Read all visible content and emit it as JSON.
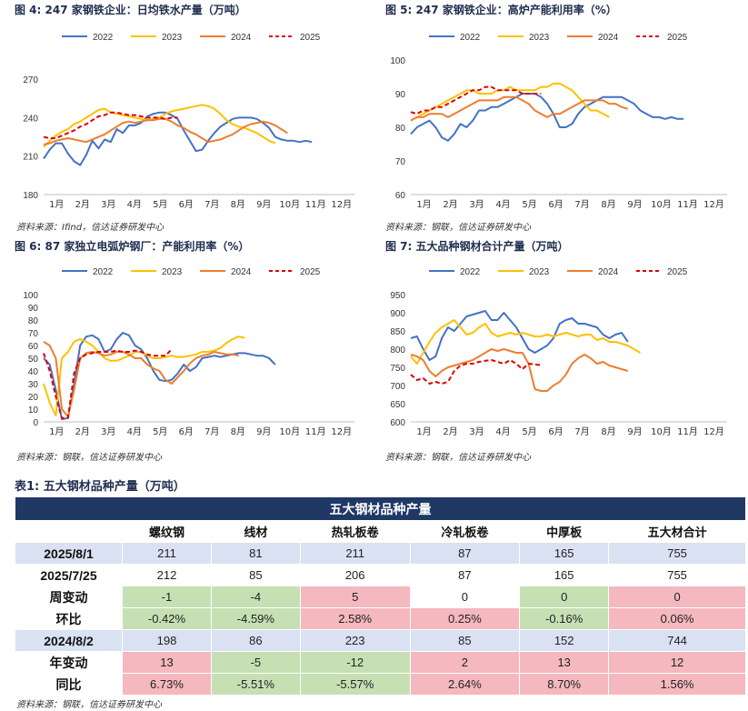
{
  "charts_meta": {
    "c4": {
      "fig": "图 4:",
      "title": "247 家钢铁企业：日均铁水产量（万吨）",
      "source": "资料来源：Ifind，信达证券研发中心"
    },
    "c5": {
      "fig": "图 5:",
      "title": "247 家钢铁企业：高炉产能利用率（%）",
      "source": "资料来源：钢联，信达证券研发中心"
    },
    "c6": {
      "fig": "图 6:",
      "title": "87 家独立电弧炉钢厂：产能利用率（%）",
      "source": "资料来源：钢联，信达证券研发中心"
    },
    "c7": {
      "fig": "图 7:",
      "title": "五大品种钢材合计产量（万吨）",
      "source": "资料来源：钢联，信达证券研发中心"
    }
  },
  "colors": {
    "2022": "#4472c4",
    "2023": "#ffc000",
    "2024": "#ed7d31",
    "2025": "#e00000"
  },
  "chart_data": [
    {
      "id": "c4",
      "type": "line",
      "x_ticks": [
        "1月",
        "2月",
        "3月",
        "4月",
        "5月",
        "6月",
        "7月",
        "8月",
        "9月",
        "10月",
        "11月",
        "12月"
      ],
      "ylim": [
        180,
        285
      ],
      "yticks": [
        180,
        210,
        240,
        270
      ],
      "series": [
        {
          "name": "2022",
          "style": "solid",
          "values": [
            208,
            215,
            220,
            220,
            212,
            206,
            203,
            211,
            222,
            216,
            223,
            221,
            231,
            228,
            234,
            234,
            236,
            241,
            243,
            244,
            244,
            242,
            239,
            230,
            222,
            214,
            215,
            222,
            228,
            233,
            236,
            239,
            240,
            240,
            240,
            239,
            236,
            232,
            225,
            223,
            222,
            222,
            221,
            222,
            221
          ]
        },
        {
          "name": "2023",
          "style": "solid",
          "values": [
            217,
            222,
            226,
            229,
            231,
            235,
            237,
            240,
            243,
            246,
            247,
            244,
            243,
            242,
            241,
            240,
            239,
            238,
            239,
            240,
            243,
            245,
            246,
            247,
            248,
            249,
            250,
            249,
            247,
            243,
            238,
            235,
            233,
            232,
            230,
            228,
            225,
            222,
            220
          ]
        },
        {
          "name": "2024",
          "style": "solid",
          "values": [
            219,
            220,
            222,
            223,
            224,
            223,
            222,
            221,
            223,
            225,
            227,
            230,
            233,
            236,
            237,
            236,
            237,
            238,
            238,
            239,
            239,
            237,
            234,
            232,
            229,
            227,
            224,
            221,
            222,
            223,
            225,
            227,
            230,
            233,
            235,
            236,
            237,
            236,
            234,
            231,
            228
          ]
        },
        {
          "name": "2025",
          "style": "dashed",
          "values": [
            225,
            224,
            224,
            226,
            228,
            230,
            233,
            235,
            238,
            241,
            242,
            244,
            244,
            243,
            242,
            242,
            241,
            240,
            240,
            240,
            239,
            240,
            240
          ]
        }
      ]
    },
    {
      "id": "c5",
      "type": "line",
      "x_ticks": [
        "1月",
        "2月",
        "3月",
        "4月",
        "5月",
        "6月",
        "7月",
        "8月",
        "9月",
        "10月",
        "11月",
        "12月"
      ],
      "ylim": [
        60,
        100
      ],
      "yticks": [
        60,
        70,
        80,
        90,
        100
      ],
      "series": [
        {
          "name": "2022",
          "style": "solid",
          "values": [
            78,
            80,
            81,
            82,
            80,
            77,
            76,
            78,
            81,
            80,
            82,
            85,
            85,
            86,
            86,
            87,
            88,
            89,
            90,
            90,
            90,
            89,
            87,
            84,
            80,
            80,
            81,
            84,
            86,
            87,
            88,
            89,
            89,
            89,
            89,
            88,
            87,
            85,
            84,
            83,
            83,
            82.5,
            83,
            82.5,
            82.5
          ]
        },
        {
          "name": "2023",
          "style": "solid",
          "values": [
            82,
            83,
            84,
            85,
            86,
            87,
            88,
            89,
            90,
            91,
            91,
            90,
            90,
            90,
            91,
            91,
            92,
            91,
            91,
            91,
            91,
            92,
            92,
            93,
            93,
            92,
            91,
            89,
            87,
            85,
            85,
            84,
            83
          ]
        },
        {
          "name": "2024",
          "style": "solid",
          "values": [
            82,
            83,
            83,
            84,
            84,
            84,
            83,
            84,
            85,
            86,
            87,
            88,
            88,
            88,
            88,
            89,
            89,
            89,
            88,
            87,
            85,
            84,
            83,
            84,
            84,
            85,
            86,
            87,
            88,
            88,
            88,
            88,
            87,
            87,
            86,
            85.5
          ]
        },
        {
          "name": "2025",
          "style": "dashed",
          "values": [
            84.5,
            84,
            85,
            85,
            86,
            86,
            87,
            88,
            89,
            90,
            91,
            91,
            92,
            92,
            91,
            91,
            91,
            91,
            90,
            90,
            90,
            90
          ]
        }
      ]
    },
    {
      "id": "c6",
      "type": "line",
      "x_ticks": [
        "1月",
        "2月",
        "3月",
        "4月",
        "5月",
        "6月",
        "7月",
        "8月",
        "9月",
        "10月",
        "11月",
        "12月"
      ],
      "ylim": [
        0,
        100
      ],
      "yticks": [
        0,
        10,
        20,
        30,
        40,
        50,
        60,
        70,
        80,
        90,
        100
      ],
      "series": [
        {
          "name": "2022",
          "style": "solid",
          "values": [
            50,
            45,
            25,
            2,
            3,
            30,
            60,
            67,
            68,
            65,
            55,
            57,
            65,
            70,
            68,
            60,
            57,
            50,
            40,
            33,
            32,
            33,
            38,
            45,
            40,
            43,
            50,
            51,
            52,
            51,
            52,
            53,
            54,
            54,
            53,
            52,
            52,
            50,
            45
          ]
        },
        {
          "name": "2023",
          "style": "solid",
          "values": [
            30,
            15,
            5,
            50,
            55,
            63,
            65,
            63,
            60,
            55,
            50,
            48,
            48,
            50,
            52,
            55,
            55,
            52,
            50,
            50,
            51,
            52,
            51,
            51,
            52,
            53,
            55,
            55,
            56,
            58,
            62,
            65,
            67,
            66
          ]
        },
        {
          "name": "2024",
          "style": "solid",
          "values": [
            63,
            60,
            50,
            10,
            4,
            25,
            50,
            54,
            55,
            54,
            52,
            53,
            55,
            55,
            53,
            50,
            50,
            45,
            42,
            40,
            33,
            30,
            35,
            40,
            46,
            50,
            52,
            53,
            55,
            54,
            53,
            53,
            52
          ]
        },
        {
          "name": "2025",
          "style": "dashed",
          "values": [
            54,
            40,
            20,
            3,
            3,
            38,
            50,
            53,
            54,
            55,
            55,
            55,
            56,
            55,
            55,
            56,
            55,
            53,
            52,
            52,
            52,
            57
          ]
        }
      ]
    },
    {
      "id": "c7",
      "type": "line",
      "x_ticks": [
        "1月",
        "2月",
        "3月",
        "4月",
        "5月",
        "6月",
        "7月",
        "8月",
        "9月",
        "10月",
        "11月",
        "12月"
      ],
      "ylim": [
        600,
        950
      ],
      "yticks": [
        600,
        650,
        700,
        750,
        800,
        850,
        900,
        950
      ],
      "series": [
        {
          "name": "2022",
          "style": "solid",
          "values": [
            830,
            835,
            800,
            770,
            780,
            830,
            860,
            850,
            870,
            890,
            895,
            900,
            905,
            880,
            880,
            900,
            880,
            860,
            830,
            800,
            790,
            800,
            810,
            830,
            870,
            880,
            885,
            870,
            870,
            865,
            860,
            840,
            830,
            840,
            845,
            820
          ]
        },
        {
          "name": "2023",
          "style": "solid",
          "values": [
            780,
            760,
            790,
            820,
            845,
            860,
            870,
            880,
            860,
            840,
            845,
            860,
            870,
            845,
            835,
            840,
            845,
            840,
            845,
            840,
            835,
            835,
            840,
            835,
            840,
            845,
            840,
            835,
            840,
            840,
            825,
            830,
            820,
            820,
            815,
            810,
            800,
            790
          ]
        },
        {
          "name": "2024",
          "style": "solid",
          "values": [
            785,
            780,
            770,
            740,
            725,
            740,
            750,
            755,
            760,
            765,
            770,
            780,
            790,
            800,
            795,
            800,
            795,
            790,
            790,
            760,
            690,
            685,
            685,
            700,
            710,
            730,
            760,
            775,
            785,
            775,
            760,
            765,
            755,
            750,
            745,
            740
          ]
        },
        {
          "name": "2025",
          "style": "dashed",
          "values": [
            730,
            715,
            720,
            705,
            710,
            705,
            710,
            740,
            755,
            760,
            760,
            765,
            768,
            770,
            765,
            760,
            770,
            760,
            745,
            760,
            758,
            756
          ]
        }
      ]
    }
  ],
  "table": {
    "label": "表1:  五大钢材品种产量（万吨）",
    "title": "五大钢材品种产量",
    "columns": [
      "螺纹钢",
      "线材",
      "热轧板卷",
      "冷轧板卷",
      "中厚板",
      "五大材合计"
    ],
    "rows": [
      {
        "label": "2025/8/1",
        "kind": "date",
        "cells": [
          "211",
          "81",
          "211",
          "87",
          "165",
          "755"
        ]
      },
      {
        "label": "2025/7/25",
        "kind": "date2",
        "cells": [
          "212",
          "85",
          "206",
          "87",
          "165",
          "755"
        ]
      },
      {
        "label": "周变动",
        "kind": "chg",
        "cells": [
          "-1",
          "-4",
          "5",
          "0",
          "0",
          "0"
        ],
        "tone": [
          "neg",
          "neg",
          "pos",
          "plain",
          "neg",
          "pos"
        ]
      },
      {
        "label": "环比",
        "kind": "chg",
        "cells": [
          "-0.42%",
          "-4.59%",
          "2.58%",
          "0.25%",
          "-0.16%",
          "0.06%"
        ],
        "tone": [
          "neg",
          "neg",
          "pos",
          "pos",
          "neg",
          "pos"
        ]
      },
      {
        "label": "2024/8/2",
        "kind": "date",
        "cells": [
          "198",
          "86",
          "223",
          "85",
          "152",
          "744"
        ]
      },
      {
        "label": "年变动",
        "kind": "chg",
        "cells": [
          "13",
          "-5",
          "-12",
          "2",
          "13",
          "12"
        ],
        "tone": [
          "pos",
          "neg",
          "neg",
          "pos",
          "pos",
          "pos"
        ]
      },
      {
        "label": "同比",
        "kind": "chg",
        "cells": [
          "6.73%",
          "-5.51%",
          "-5.57%",
          "2.64%",
          "8.70%",
          "1.56%"
        ],
        "tone": [
          "pos",
          "neg",
          "neg",
          "pos",
          "pos",
          "pos"
        ]
      }
    ],
    "source": "资料来源：钢联，信达证券研发中心"
  }
}
